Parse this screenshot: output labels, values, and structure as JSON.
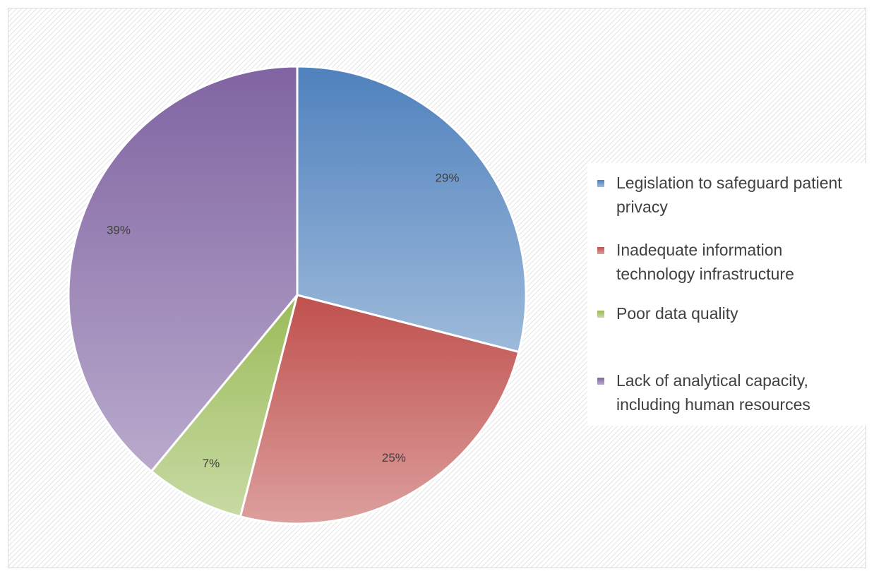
{
  "chart_data": {
    "type": "pie",
    "categories": [
      "Legislation to safeguard patient privacy",
      "Inadequate information technology infrastructure",
      "Poor data quality",
      "Lack of analytical capacity, including human resources"
    ],
    "values": [
      29,
      25,
      7,
      39
    ],
    "value_labels": [
      "29%",
      "25%",
      "7%",
      "39%"
    ],
    "colors": [
      "#4f81bd",
      "#c0504d",
      "#9bbb59",
      "#8064a2"
    ],
    "legend": "right"
  }
}
